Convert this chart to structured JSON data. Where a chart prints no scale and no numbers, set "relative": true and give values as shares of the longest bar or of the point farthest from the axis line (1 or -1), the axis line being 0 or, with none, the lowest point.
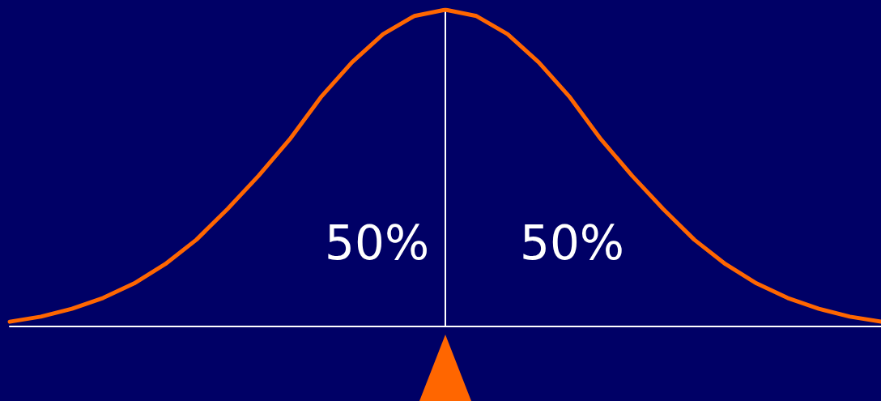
{
  "chart_data": {
    "type": "line",
    "relative": true,
    "tick_labels": false,
    "grid": false,
    "marker": "none",
    "line_style": "solid",
    "categories": [
      null,
      null,
      null,
      null,
      null,
      null,
      null,
      null,
      null,
      null,
      null,
      null,
      null,
      null,
      null,
      null,
      null,
      null,
      null,
      null,
      null,
      null,
      null,
      null,
      null,
      null,
      null,
      null,
      null
    ],
    "series": [
      {
        "color": "#ff6600",
        "values": [
          0.015,
          0.031,
          0.056,
          0.09,
          0.136,
          0.197,
          0.274,
          0.371,
          0.476,
          0.591,
          0.724,
          0.834,
          0.923,
          0.98,
          1,
          0.98,
          0.923,
          0.834,
          0.724,
          0.591,
          0.476,
          0.371,
          0.274,
          0.197,
          0.136,
          0.09,
          0.056,
          0.031,
          0.015
        ]
      }
    ],
    "annotations": [
      "50%",
      "50%"
    ]
  }
}
